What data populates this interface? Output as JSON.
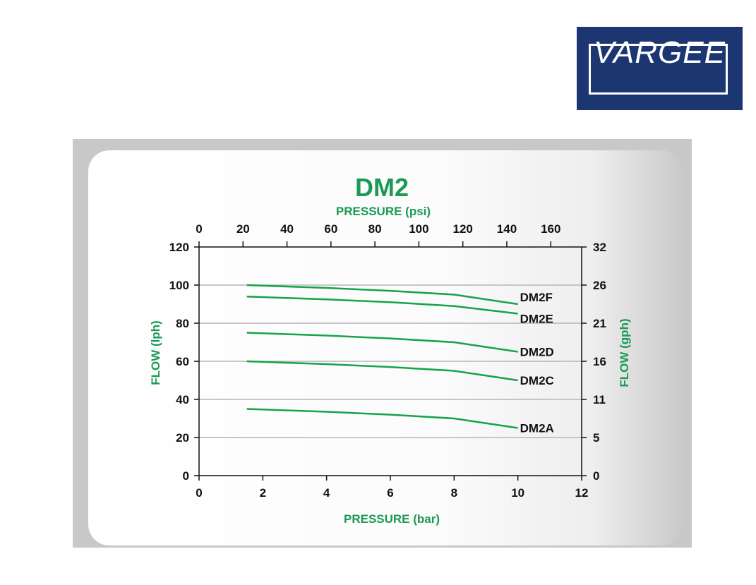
{
  "logo": {
    "text": "VARGEE",
    "bg_color": "#1b3670"
  },
  "chart_data": {
    "type": "line",
    "title": "DM2",
    "xlabel": "PRESSURE (bar)",
    "x2label": "PRESSURE (psi)",
    "ylabel": "FLOW (lph)",
    "y2label": "FLOW (gph)",
    "xlim": [
      0,
      12
    ],
    "ylim": [
      0,
      120
    ],
    "x_ticks": [
      0,
      2,
      4,
      6,
      8,
      10,
      12
    ],
    "x2_ticks": [
      0,
      20,
      40,
      60,
      80,
      100,
      120,
      140,
      160
    ],
    "y_ticks": [
      0,
      20,
      40,
      60,
      80,
      100,
      120
    ],
    "y2_tick_labels": [
      "0",
      "5",
      "11",
      "16",
      "21",
      "26",
      "32"
    ],
    "grid": true,
    "line_color": "#16a34a",
    "title_color": "#1a9a55",
    "x": [
      1.5,
      4,
      6,
      8,
      10
    ],
    "series": [
      {
        "name": "DM2F",
        "values": [
          100,
          98.5,
          97,
          95,
          90
        ]
      },
      {
        "name": "DM2E",
        "values": [
          94,
          92.5,
          91,
          89,
          85
        ]
      },
      {
        "name": "DM2D",
        "values": [
          75,
          73.5,
          72,
          70,
          65
        ]
      },
      {
        "name": "DM2C",
        "values": [
          60,
          58.5,
          57,
          55,
          50
        ]
      },
      {
        "name": "DM2A",
        "values": [
          35,
          33.5,
          32,
          30,
          25
        ]
      }
    ]
  }
}
